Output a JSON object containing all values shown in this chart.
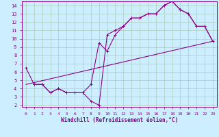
{
  "title": "",
  "xlabel": "Windchill (Refroidissement éolien,°C)",
  "bg_color": "#cceeff",
  "grid_color": "#aaccbb",
  "line_color": "#880088",
  "xlim": [
    -0.5,
    23.5
  ],
  "ylim": [
    1.8,
    14.5
  ],
  "yticks": [
    2,
    3,
    4,
    5,
    6,
    7,
    8,
    9,
    10,
    11,
    12,
    13,
    14
  ],
  "xticks": [
    0,
    1,
    2,
    3,
    4,
    5,
    6,
    7,
    8,
    9,
    10,
    11,
    12,
    13,
    14,
    15,
    16,
    17,
    18,
    19,
    20,
    21,
    22,
    23
  ],
  "line1_x": [
    0,
    1,
    2,
    3,
    4,
    5,
    6,
    7,
    8,
    9,
    10,
    11,
    12,
    13,
    14,
    15,
    16,
    17,
    18,
    19,
    20,
    21,
    22,
    23
  ],
  "line1_y": [
    6.5,
    4.5,
    4.5,
    3.5,
    4.0,
    3.5,
    3.5,
    3.5,
    2.5,
    2.0,
    10.5,
    11.0,
    11.5,
    12.5,
    12.5,
    13.0,
    13.0,
    14.0,
    14.5,
    13.5,
    13.0,
    11.5,
    11.5,
    9.7
  ],
  "line2_x": [
    1,
    2,
    3,
    4,
    5,
    6,
    7,
    8,
    9,
    10,
    11,
    12,
    13,
    14,
    15,
    16,
    17,
    18,
    19,
    20,
    21,
    22,
    23
  ],
  "line2_y": [
    4.5,
    4.5,
    3.5,
    4.0,
    3.5,
    3.5,
    3.5,
    4.5,
    9.5,
    8.5,
    10.5,
    11.5,
    12.5,
    12.5,
    13.0,
    13.0,
    14.0,
    14.5,
    13.5,
    13.0,
    11.5,
    11.5,
    9.7
  ],
  "line3_x": [
    0,
    23
  ],
  "line3_y": [
    4.5,
    9.7
  ]
}
